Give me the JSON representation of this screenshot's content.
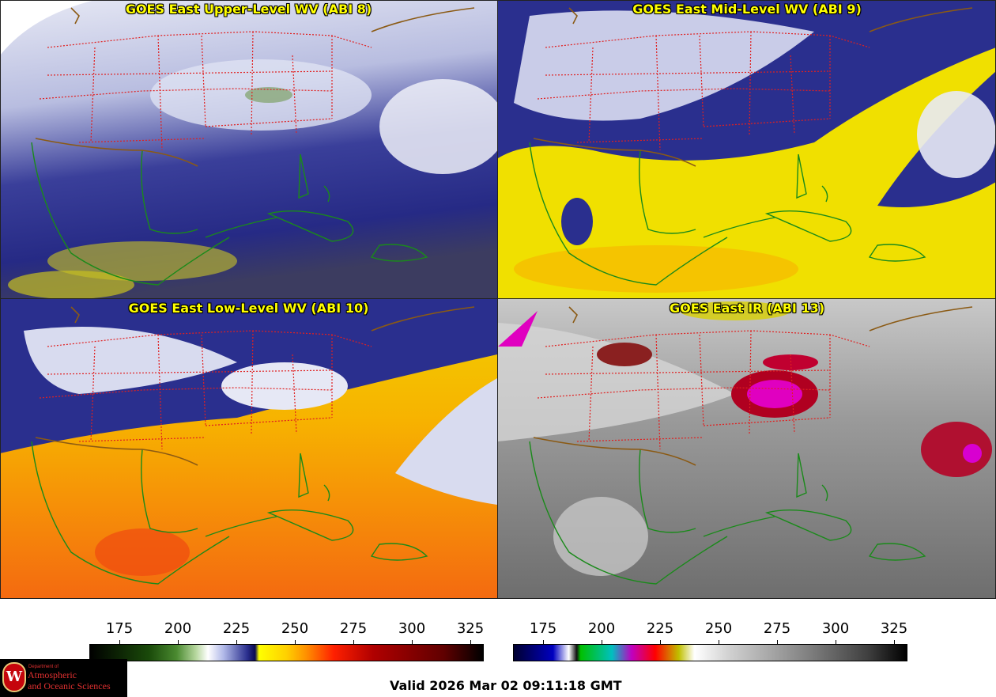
{
  "panels": [
    {
      "title": "GOES East Upper-Level WV (ABI 8)",
      "scheme": "wv_upper"
    },
    {
      "title": "GOES East Mid-Level WV (ABI 9)",
      "scheme": "wv_mid"
    },
    {
      "title": "GOES East Low-Level WV (ABI 10)",
      "scheme": "wv_low"
    },
    {
      "title": "GOES East IR (ABI 13)",
      "scheme": "ir"
    }
  ],
  "colorbars": {
    "wv": {
      "ticks": [
        "175",
        "200",
        "225",
        "250",
        "275",
        "300",
        "325"
      ]
    },
    "ir": {
      "ticks": [
        "175",
        "200",
        "225",
        "250",
        "275",
        "300",
        "325"
      ]
    }
  },
  "colors": {
    "states": "#e02020",
    "countries": "#8b5a14",
    "coast": "#1a8a1a",
    "title_text": "#ffff00"
  },
  "logo": {
    "dept_small": "Department of",
    "line1": "Atmospheric",
    "line2": "and Oceanic Sciences",
    "seal_letter": "W",
    "icon": "uw-crest-icon"
  },
  "valid_text": "Valid 2026 Mar 02 09:11:18 GMT"
}
